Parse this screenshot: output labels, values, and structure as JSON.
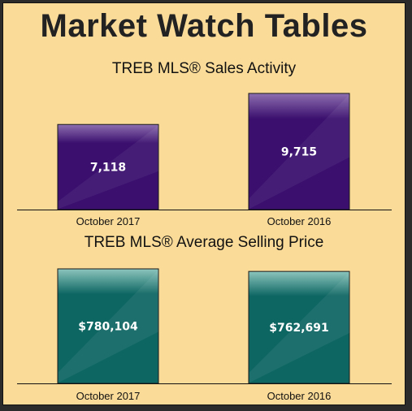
{
  "page": {
    "title": "Market Watch Tables"
  },
  "chart_data": [
    {
      "type": "bar",
      "title": "TREB MLS® Sales Activity",
      "categories": [
        "October 2017",
        "October 2016"
      ],
      "values": [
        7118,
        9715
      ],
      "value_labels": [
        "7,118",
        "9,715"
      ],
      "ylim": [
        0,
        9715
      ],
      "grid": false,
      "colors": {
        "bar": "#3a0f6e",
        "bar_top": "#8e6fb0"
      }
    },
    {
      "type": "bar",
      "title": "TREB MLS® Average Selling Price",
      "categories": [
        "October 2017",
        "October 2016"
      ],
      "values": [
        780104,
        762691
      ],
      "value_labels": [
        "$780,104",
        "$762,691"
      ],
      "ylim": [
        0,
        780104
      ],
      "grid": false,
      "colors": {
        "bar": "#0e6663",
        "bar_top": "#8cc5bd"
      }
    }
  ],
  "colors": {
    "background": "#fbdb98",
    "frame": "#2b2b2b"
  }
}
